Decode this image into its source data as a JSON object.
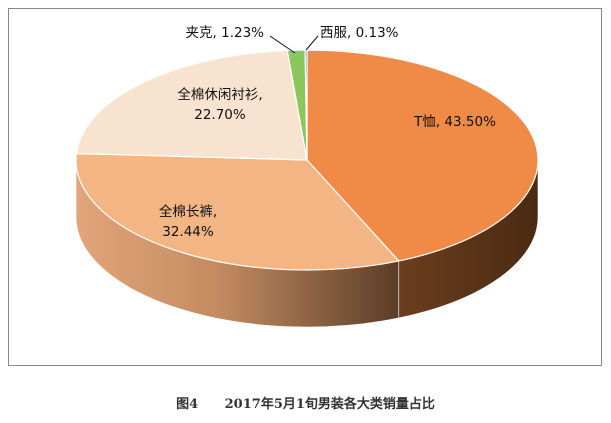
{
  "chart_data": {
    "type": "pie",
    "style": "3d",
    "slices": [
      {
        "label": "T恤",
        "value": 43.5,
        "value_label": "43.50%",
        "color": "#EF8A47"
      },
      {
        "label": "全棉长裤",
        "value": 32.44,
        "value_label": "32.44%",
        "color": "#F4B585"
      },
      {
        "label": "全棉休闲衬衫",
        "value": 22.7,
        "value_label": "22.70%",
        "color": "#F8E3D0"
      },
      {
        "label": "夹克",
        "value": 1.23,
        "value_label": "1.23%",
        "color": "#8BC75B"
      },
      {
        "label": "西服",
        "value": 0.13,
        "value_label": "0.13%",
        "color": "#4F81BD"
      }
    ]
  },
  "caption": {
    "figure_number": "图4",
    "text": "2017年5月1旬男装各大类销量占比"
  }
}
